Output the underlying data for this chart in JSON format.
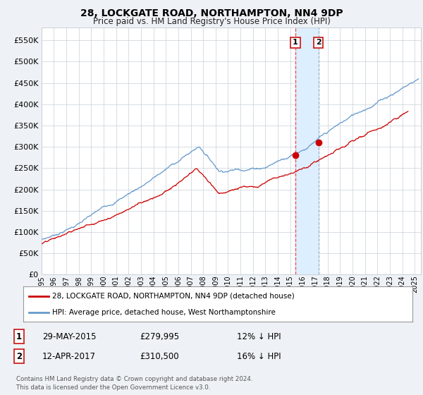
{
  "title": "28, LOCKGATE ROAD, NORTHAMPTON, NN4 9DP",
  "subtitle": "Price paid vs. HM Land Registry's House Price Index (HPI)",
  "legend_line1": "28, LOCKGATE ROAD, NORTHAMPTON, NN4 9DP (detached house)",
  "legend_line2": "HPI: Average price, detached house, West Northamptonshire",
  "table_row1": [
    "1",
    "29-MAY-2015",
    "£279,995",
    "12% ↓ HPI"
  ],
  "table_row2": [
    "2",
    "12-APR-2017",
    "£310,500",
    "16% ↓ HPI"
  ],
  "footer": "Contains HM Land Registry data © Crown copyright and database right 2024.\nThis data is licensed under the Open Government Licence v3.0.",
  "hpi_color": "#6699cc",
  "price_color": "#cc0000",
  "marker_color": "#cc0000",
  "vline1_color": "#ff3333",
  "vline2_color": "#8899aa",
  "shade_color": "#ddeeff",
  "bg_color": "#eef2f6",
  "plot_bg": "#ffffff",
  "grid_color": "#c8d0d8",
  "ylim": [
    0,
    580000
  ],
  "yticks": [
    0,
    50000,
    100000,
    150000,
    200000,
    250000,
    300000,
    350000,
    400000,
    450000,
    500000,
    550000
  ],
  "sale1_year": 2015.41,
  "sale1_price": 279995,
  "sale2_year": 2017.27,
  "sale2_price": 310500,
  "xstart": 1995,
  "xend": 2025.5
}
